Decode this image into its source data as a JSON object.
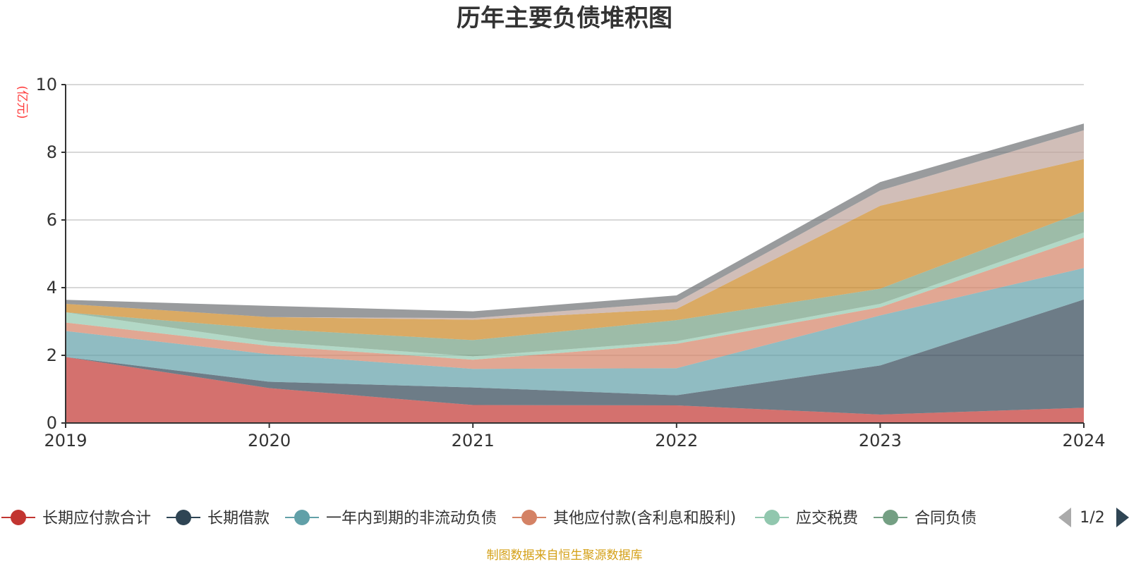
{
  "chart_data": {
    "type": "area",
    "stacked": true,
    "title": "历年主要负债堆积图",
    "ylabel": "(亿元)",
    "x": [
      "2019",
      "2020",
      "2021",
      "2022",
      "2023",
      "2024"
    ],
    "ylim": [
      0,
      10
    ],
    "yticks": [
      0,
      2,
      4,
      6,
      8,
      10
    ],
    "grid": true,
    "legend_position": "bottom",
    "series": [
      {
        "name": "长期应付款合计",
        "color": "#c23531",
        "values": [
          1.95,
          1.03,
          0.53,
          0.52,
          0.25,
          0.45
        ]
      },
      {
        "name": "长期借款",
        "color": "#2f4554",
        "values": [
          0.0,
          0.19,
          0.52,
          0.3,
          1.45,
          3.2
        ]
      },
      {
        "name": "一年内到期的非流动负债",
        "color": "#61a0a8",
        "values": [
          0.77,
          0.81,
          0.55,
          0.8,
          1.48,
          0.93
        ]
      },
      {
        "name": "其他应付款(含利息和股利)",
        "color": "#d48265",
        "values": [
          0.25,
          0.25,
          0.27,
          0.72,
          0.24,
          0.9
        ]
      },
      {
        "name": "应交税费",
        "color": "#91c7ae",
        "values": [
          0.3,
          0.12,
          0.1,
          0.08,
          0.1,
          0.15
        ]
      },
      {
        "name": "合同负债",
        "color": "#749f83",
        "values": [
          0.0,
          0.38,
          0.48,
          0.62,
          0.45,
          0.62
        ]
      },
      {
        "name": "",
        "color": "#ca8622",
        "values": [
          0.25,
          0.35,
          0.6,
          0.33,
          2.45,
          1.55
        ]
      },
      {
        "name": "",
        "color": "#bda29a",
        "values": [
          0.0,
          0.0,
          0.05,
          0.2,
          0.45,
          0.85
        ]
      },
      {
        "name": "",
        "color": "#6e7074",
        "values": [
          0.12,
          0.33,
          0.2,
          0.2,
          0.25,
          0.2
        ]
      }
    ]
  },
  "legend": {
    "page_indicator": "1/2"
  },
  "footer": {
    "source": "制图数据来自恒生聚源数据库"
  }
}
